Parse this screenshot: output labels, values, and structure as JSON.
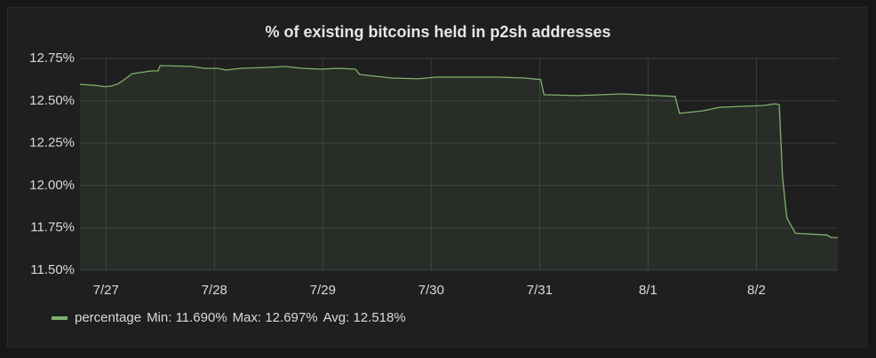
{
  "chart_data": {
    "type": "line",
    "title": "% of existing bitcoins held in p2sh addresses",
    "x": [
      -0.24,
      -0.07,
      -0.01,
      0.05,
      0.11,
      0.19,
      0.24,
      0.42,
      0.48,
      0.5,
      0.79,
      0.91,
      1.03,
      1.11,
      1.24,
      1.48,
      1.65,
      1.81,
      1.98,
      2.14,
      2.3,
      2.34,
      2.63,
      2.88,
      3.04,
      3.61,
      3.86,
      4.01,
      4.04,
      4.35,
      4.76,
      5.09,
      5.25,
      5.29,
      5.5,
      5.66,
      6.07,
      6.17,
      6.21,
      6.24,
      6.28,
      6.36,
      6.65,
      6.69,
      6.75
    ],
    "series": [
      {
        "name": "percentage",
        "color": "#7eb26d",
        "values": [
          12.598,
          12.59,
          12.583,
          12.588,
          12.6,
          12.635,
          12.66,
          12.677,
          12.677,
          12.708,
          12.703,
          12.692,
          12.692,
          12.682,
          12.692,
          12.697,
          12.703,
          12.692,
          12.687,
          12.692,
          12.687,
          12.656,
          12.635,
          12.63,
          12.64,
          12.64,
          12.635,
          12.625,
          12.536,
          12.531,
          12.541,
          12.531,
          12.526,
          12.426,
          12.441,
          12.462,
          12.473,
          12.483,
          12.478,
          12.05,
          11.81,
          11.718,
          11.708,
          11.693,
          11.693
        ],
        "legend_values": [
          "Min: 11.690%",
          "Max: 12.697%",
          "Avg: 12.518%"
        ]
      }
    ],
    "xlim": [
      -0.24,
      6.75
    ],
    "xticks": [
      {
        "value": 0,
        "label": "7/27"
      },
      {
        "value": 1,
        "label": "7/28"
      },
      {
        "value": 2,
        "label": "7/29"
      },
      {
        "value": 3,
        "label": "7/30"
      },
      {
        "value": 4,
        "label": "7/31"
      },
      {
        "value": 5,
        "label": "8/1"
      },
      {
        "value": 6,
        "label": "8/2"
      }
    ],
    "ylim": [
      11.5,
      12.75
    ],
    "yticks": [
      {
        "value": 11.5,
        "label": "11.50%"
      },
      {
        "value": 11.75,
        "label": "11.75%"
      },
      {
        "value": 12,
        "label": "12.00%"
      },
      {
        "value": 12.25,
        "label": "12.25%"
      },
      {
        "value": 12.5,
        "label": "12.50%"
      },
      {
        "value": 12.75,
        "label": "12.75%"
      }
    ],
    "grid": true,
    "fill": true
  }
}
